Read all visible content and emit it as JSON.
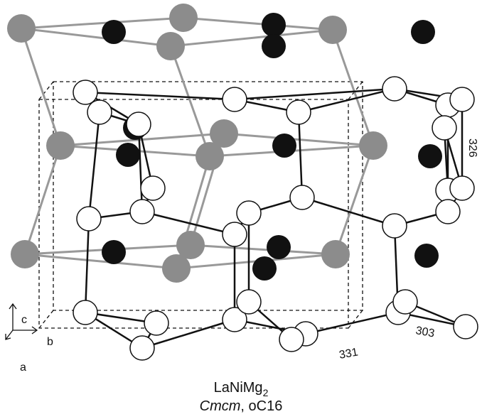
{
  "labels": {
    "distance_top_right": 326,
    "distance_bottom_middle": 331,
    "distance_bottom_right": 303
  },
  "axes": {
    "c": "c",
    "b": "b",
    "a": "a"
  },
  "caption": {
    "formula": "LaNiMg",
    "formula_subscript": "2",
    "space_group": "Cmcm",
    "separator": ", ",
    "pearson_symbol": "oC16"
  }
}
